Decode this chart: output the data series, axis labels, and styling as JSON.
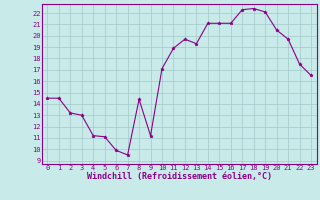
{
  "x": [
    0,
    1,
    2,
    3,
    4,
    5,
    6,
    7,
    8,
    9,
    10,
    11,
    12,
    13,
    14,
    15,
    16,
    17,
    18,
    19,
    20,
    21,
    22,
    23
  ],
  "y": [
    14.5,
    14.5,
    13.2,
    13.0,
    11.2,
    11.1,
    9.9,
    9.5,
    14.4,
    11.2,
    17.1,
    18.9,
    19.7,
    19.3,
    21.1,
    21.1,
    21.1,
    22.3,
    22.4,
    22.1,
    20.5,
    19.7,
    17.5,
    16.5
  ],
  "line_color": "#8B008B",
  "marker": "*",
  "marker_color": "#8B008B",
  "bg_color": "#c8eae8",
  "grid_color": "#a0c8c8",
  "xlabel": "Windchill (Refroidissement éolien,°C)",
  "xlim": [
    -0.5,
    23.5
  ],
  "ylim": [
    8.7,
    22.8
  ],
  "yticks": [
    9,
    10,
    11,
    12,
    13,
    14,
    15,
    16,
    17,
    18,
    19,
    20,
    21,
    22
  ],
  "xticks": [
    0,
    1,
    2,
    3,
    4,
    5,
    6,
    7,
    8,
    9,
    10,
    11,
    12,
    13,
    14,
    15,
    16,
    17,
    18,
    19,
    20,
    21,
    22,
    23
  ],
  "tick_color": "#8B008B",
  "tick_fontsize": 5.0,
  "xlabel_fontsize": 6.0,
  "spine_color": "#8B008B",
  "linewidth": 0.8,
  "markersize": 2.5
}
